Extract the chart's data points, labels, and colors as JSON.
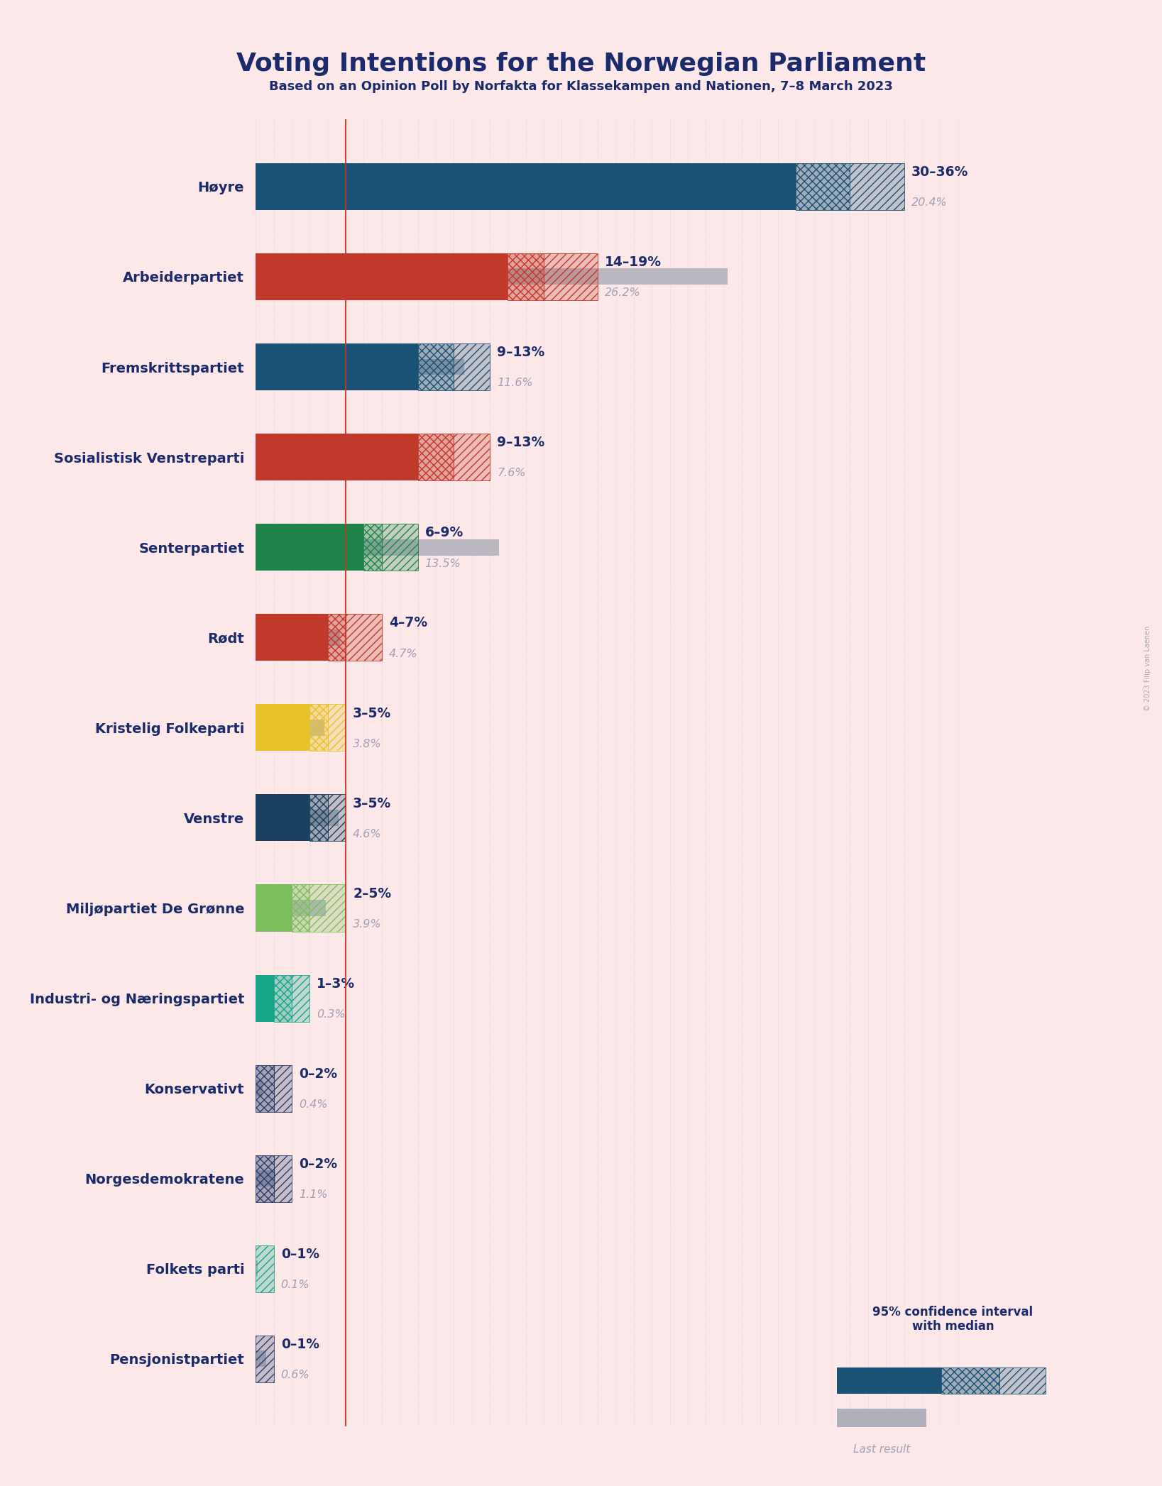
{
  "title": "Voting Intentions for the Norwegian Parliament",
  "subtitle": "Based on an Opinion Poll by Norfakta for Klassekampen and Nationen, 7–8 March 2023",
  "background_color": "#fce8e8",
  "parties": [
    {
      "name": "Høyre",
      "color": "#1a5276",
      "ci_low": 30,
      "ci_high": 36,
      "median": 33,
      "last": 20.4,
      "label": "30–36%",
      "last_label": "20.4%"
    },
    {
      "name": "Arbeiderpartiet",
      "color": "#c0392b",
      "ci_low": 14,
      "ci_high": 19,
      "median": 16,
      "last": 26.2,
      "label": "14–19%",
      "last_label": "26.2%"
    },
    {
      "name": "Fremskrittspartiet",
      "color": "#1a5276",
      "ci_low": 9,
      "ci_high": 13,
      "median": 11,
      "last": 11.6,
      "label": "9–13%",
      "last_label": "11.6%"
    },
    {
      "name": "Sosialistisk Venstreparti",
      "color": "#c0392b",
      "ci_low": 9,
      "ci_high": 13,
      "median": 11,
      "last": 7.6,
      "label": "9–13%",
      "last_label": "7.6%"
    },
    {
      "name": "Senterpartiet",
      "color": "#1e8449",
      "ci_low": 6,
      "ci_high": 9,
      "median": 7,
      "last": 13.5,
      "label": "6–9%",
      "last_label": "13.5%"
    },
    {
      "name": "Rødt",
      "color": "#c0392b",
      "ci_low": 4,
      "ci_high": 7,
      "median": 5,
      "last": 4.7,
      "label": "4–7%",
      "last_label": "4.7%"
    },
    {
      "name": "Kristelig Folkeparti",
      "color": "#e8c22a",
      "ci_low": 3,
      "ci_high": 5,
      "median": 4,
      "last": 3.8,
      "label": "3–5%",
      "last_label": "3.8%"
    },
    {
      "name": "Venstre",
      "color": "#1a4060",
      "ci_low": 3,
      "ci_high": 5,
      "median": 4,
      "last": 4.6,
      "label": "3–5%",
      "last_label": "4.6%"
    },
    {
      "name": "Miljøpartiet De Grønne",
      "color": "#7dbe5c",
      "ci_low": 2,
      "ci_high": 5,
      "median": 3,
      "last": 3.9,
      "label": "2–5%",
      "last_label": "3.9%"
    },
    {
      "name": "Industri- og Næringspartiet",
      "color": "#17a589",
      "ci_low": 1,
      "ci_high": 3,
      "median": 2,
      "last": 0.3,
      "label": "1–3%",
      "last_label": "0.3%"
    },
    {
      "name": "Konservativt",
      "color": "#2c3e6b",
      "ci_low": 0,
      "ci_high": 2,
      "median": 1,
      "last": 0.4,
      "label": "0–2%",
      "last_label": "0.4%"
    },
    {
      "name": "Norgesdemokratene",
      "color": "#2c3e6b",
      "ci_low": 0,
      "ci_high": 2,
      "median": 1,
      "last": 1.1,
      "label": "0–2%",
      "last_label": "1.1%"
    },
    {
      "name": "Folkets parti",
      "color": "#17a589",
      "ci_low": 0,
      "ci_high": 1,
      "median": 0,
      "last": 0.1,
      "label": "0–1%",
      "last_label": "0.1%"
    },
    {
      "name": "Pensjonistpartiet",
      "color": "#2c3e6b",
      "ci_low": 0,
      "ci_high": 1,
      "median": 0,
      "last": 0.6,
      "label": "0–1%",
      "last_label": "0.6%"
    }
  ],
  "ref_line_x": 5,
  "ref_line_color": "#c0392b",
  "label_color": "#1a2a6b",
  "last_label_color": "#a0a0b8",
  "bar_height": 0.52,
  "last_bar_height": 0.18,
  "xlim": [
    0,
    40
  ],
  "copyright": "© 2023 Filip van Laenen"
}
